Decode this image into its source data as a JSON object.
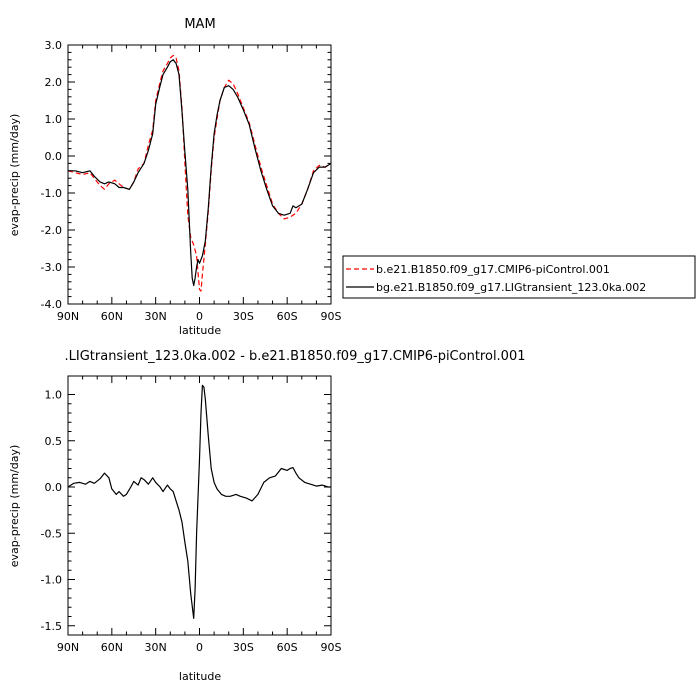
{
  "chart_data": [
    {
      "type": "line",
      "title": "MAM",
      "xlabel": "latitude",
      "ylabel": "evap-precip (mm/day)",
      "xlim": [
        90,
        -90
      ],
      "ylim": [
        -4.0,
        3.0
      ],
      "x_ticks": [
        90,
        60,
        30,
        0,
        -30,
        -60,
        -90
      ],
      "x_tick_labels": [
        "90N",
        "60N",
        "30N",
        "0",
        "30S",
        "60S",
        "90S"
      ],
      "y_ticks": [
        -4.0,
        -3.0,
        -2.0,
        -1.0,
        0.0,
        1.0,
        2.0,
        3.0
      ],
      "y_tick_labels": [
        "-4.0",
        "-3.0",
        "-2.0",
        "-1.0",
        "0.0",
        "1.0",
        "2.0",
        "3.0"
      ],
      "grid": false,
      "legend": "right",
      "series": [
        {
          "name": "b.e21.B1850.f09_g17.CMIP6-piControl.001",
          "color": "#ff0000",
          "style": "dashed",
          "x": [
            90,
            85,
            80,
            75,
            72,
            68,
            65,
            62,
            58,
            55,
            52,
            48,
            45,
            42,
            38,
            35,
            32,
            30,
            27,
            25,
            22,
            20,
            18,
            16,
            14,
            12,
            10,
            8,
            6,
            4,
            2,
            0,
            -1,
            -2,
            -4,
            -6,
            -8,
            -10,
            -12,
            -14,
            -17,
            -20,
            -23,
            -26,
            -30,
            -34,
            -38,
            -42,
            -46,
            -50,
            -54,
            -58,
            -62,
            -66,
            -70,
            -74,
            -78,
            -82,
            -86,
            -90
          ],
          "y": [
            -0.4,
            -0.45,
            -0.5,
            -0.45,
            -0.6,
            -0.8,
            -0.9,
            -0.75,
            -0.65,
            -0.75,
            -0.85,
            -0.9,
            -0.7,
            -0.35,
            -0.2,
            0.3,
            0.7,
            1.5,
            2.0,
            2.3,
            2.5,
            2.65,
            2.72,
            2.65,
            2.3,
            1.3,
            -0.2,
            -1.6,
            -2.2,
            -2.4,
            -2.7,
            -3.6,
            -3.65,
            -3.2,
            -2.4,
            -1.5,
            -0.4,
            0.5,
            1.0,
            1.5,
            1.85,
            2.05,
            1.95,
            1.7,
            1.3,
            0.9,
            0.3,
            -0.3,
            -0.8,
            -1.3,
            -1.55,
            -1.7,
            -1.65,
            -1.55,
            -1.3,
            -0.9,
            -0.4,
            -0.25,
            -0.3,
            -0.2
          ]
        },
        {
          "name": "bg.e21.B1850.f09_g17.LIGtransient_123.0ka.002",
          "color": "#000000",
          "style": "solid",
          "x": [
            90,
            85,
            80,
            75,
            72,
            68,
            65,
            62,
            58,
            55,
            52,
            48,
            45,
            42,
            38,
            35,
            32,
            30,
            27,
            25,
            22,
            20,
            18,
            16,
            14,
            12,
            10,
            8,
            6,
            5,
            4,
            3,
            2,
            1,
            0,
            -2,
            -4,
            -6,
            -8,
            -10,
            -12,
            -14,
            -17,
            -20,
            -23,
            -26,
            -30,
            -34,
            -38,
            -42,
            -46,
            -50,
            -54,
            -58,
            -62,
            -64,
            -66,
            -70,
            -74,
            -78,
            -82,
            -86,
            -90
          ],
          "y": [
            -0.4,
            -0.4,
            -0.45,
            -0.4,
            -0.55,
            -0.7,
            -0.75,
            -0.7,
            -0.75,
            -0.85,
            -0.85,
            -0.9,
            -0.7,
            -0.45,
            -0.2,
            0.15,
            0.6,
            1.4,
            1.9,
            2.2,
            2.4,
            2.55,
            2.6,
            2.5,
            2.2,
            1.2,
            0.1,
            -0.9,
            -2.6,
            -3.3,
            -3.5,
            -3.3,
            -3.0,
            -2.8,
            -2.9,
            -2.7,
            -2.3,
            -1.4,
            -0.3,
            0.6,
            1.1,
            1.5,
            1.85,
            1.9,
            1.8,
            1.6,
            1.25,
            0.85,
            0.2,
            -0.4,
            -0.9,
            -1.35,
            -1.55,
            -1.6,
            -1.55,
            -1.35,
            -1.4,
            -1.3,
            -0.9,
            -0.45,
            -0.3,
            -0.3,
            -0.2
          ]
        }
      ]
    },
    {
      "type": "line",
      "title": ".LIGtransient_123.0ka.002 - b.e21.B1850.f09_g17.CMIP6-piControl.001",
      "xlabel": "latitude",
      "ylabel": "evap-precip (mm/day)",
      "xlim": [
        90,
        -90
      ],
      "ylim": [
        -1.6,
        1.2
      ],
      "x_ticks": [
        90,
        60,
        30,
        0,
        -30,
        -60,
        -90
      ],
      "x_tick_labels": [
        "90N",
        "60N",
        "30N",
        "0",
        "30S",
        "60S",
        "90S"
      ],
      "y_ticks": [
        -1.5,
        -1.0,
        -0.5,
        0.0,
        0.5,
        1.0
      ],
      "y_tick_labels": [
        "-1.5",
        "-1.0",
        "-0.5",
        "0.0",
        "0.5",
        "1.0"
      ],
      "grid": false,
      "series": [
        {
          "color": "#000000",
          "style": "solid",
          "x": [
            90,
            86,
            82,
            78,
            75,
            72,
            68,
            65,
            62,
            60,
            57,
            55,
            52,
            50,
            47,
            45,
            42,
            40,
            38,
            35,
            32,
            30,
            27,
            25,
            22,
            20,
            18,
            16,
            14,
            12,
            10,
            8,
            6,
            4,
            3,
            2,
            0,
            -1,
            -2,
            -3,
            -4,
            -6,
            -8,
            -10,
            -12,
            -15,
            -18,
            -21,
            -25,
            -28,
            -32,
            -36,
            -40,
            -44,
            -48,
            -52,
            -56,
            -60,
            -62,
            -64,
            -66,
            -68,
            -72,
            -76,
            -80,
            -84,
            -88,
            -90
          ],
          "y": [
            0.0,
            0.04,
            0.05,
            0.03,
            0.06,
            0.04,
            0.09,
            0.15,
            0.1,
            -0.02,
            -0.08,
            -0.05,
            -0.1,
            -0.08,
            0.0,
            0.06,
            0.02,
            0.1,
            0.08,
            0.03,
            0.1,
            0.05,
            0.0,
            -0.05,
            0.02,
            -0.02,
            -0.05,
            -0.15,
            -0.25,
            -0.38,
            -0.6,
            -0.8,
            -1.15,
            -1.42,
            -1.1,
            -0.5,
            0.3,
            0.8,
            1.1,
            1.08,
            0.95,
            0.55,
            0.2,
            0.05,
            -0.02,
            -0.08,
            -0.1,
            -0.1,
            -0.08,
            -0.1,
            -0.12,
            -0.15,
            -0.08,
            0.05,
            0.1,
            0.12,
            0.2,
            0.18,
            0.2,
            0.21,
            0.15,
            0.1,
            0.05,
            0.03,
            0.01,
            0.02,
            0.0,
            0.0
          ]
        }
      ]
    }
  ]
}
